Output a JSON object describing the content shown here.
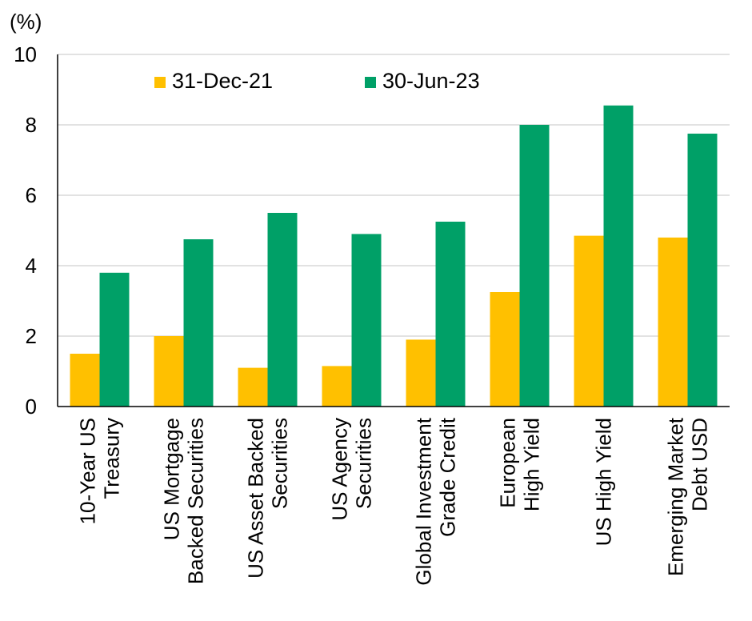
{
  "chart_data": {
    "type": "bar",
    "title": "",
    "unit_label": "(%)",
    "xlabel": "",
    "ylabel": "",
    "ylim": [
      0,
      10
    ],
    "yticks": [
      0,
      2,
      4,
      6,
      8,
      10
    ],
    "grid": true,
    "legend_position": "top",
    "categories": [
      [
        "10-Year US",
        "Treasury"
      ],
      [
        "US Mortgage",
        "Backed Securities"
      ],
      [
        "US Asset Backed",
        "Securities"
      ],
      [
        "US Agency",
        "Securities"
      ],
      [
        "Global Investment",
        "Grade Credit"
      ],
      [
        "European",
        "High Yield"
      ],
      [
        "US High Yield"
      ],
      [
        "Emerging Market",
        "Debt USD"
      ]
    ],
    "series": [
      {
        "name": "31-Dec-21",
        "color": "#ffc000",
        "values": [
          1.5,
          2.0,
          1.1,
          1.15,
          1.9,
          3.25,
          4.85,
          4.8
        ]
      },
      {
        "name": "30-Jun-23",
        "color": "#00a067",
        "values": [
          3.8,
          4.75,
          5.5,
          4.9,
          5.25,
          8.0,
          8.55,
          7.75
        ]
      }
    ]
  }
}
